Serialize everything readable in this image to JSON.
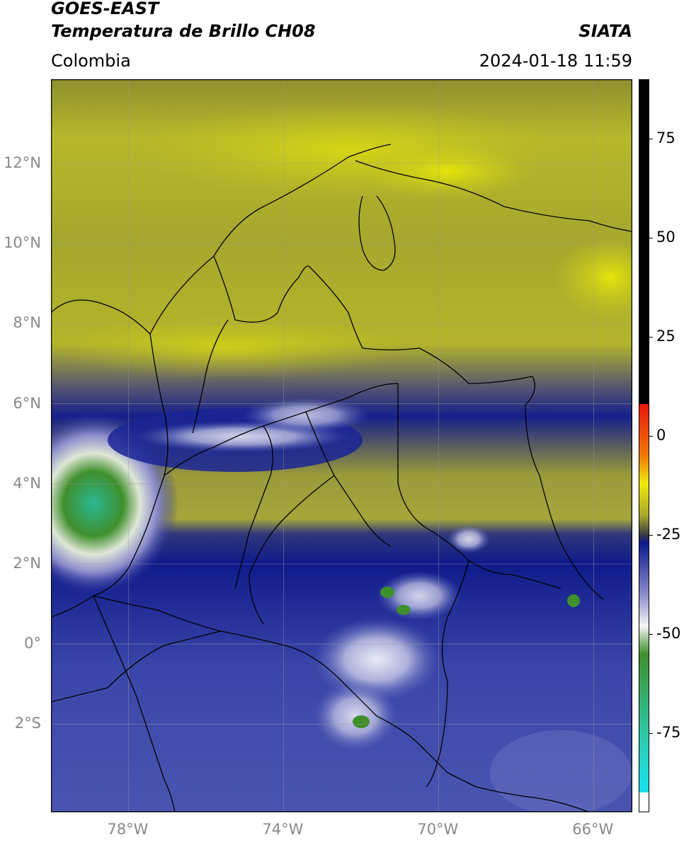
{
  "header": {
    "satellite": "GOES-EAST",
    "product": "Temperatura de Brillo CH08",
    "source": "SIATA",
    "region": "Colombia",
    "datetime": "2024-01-18 11:59"
  },
  "map": {
    "lat_labels": [
      "12°N",
      "10°N",
      "8°N",
      "6°N",
      "4°N",
      "2°N",
      "0°",
      "2°S"
    ],
    "lon_labels": [
      "78°W",
      "74°W",
      "70°W",
      "66°W"
    ],
    "lat_values": [
      12,
      10,
      8,
      6,
      4,
      2,
      0,
      -2
    ],
    "lon_values": [
      -78,
      -74,
      -70,
      -66
    ],
    "lon_range": [
      -80,
      -65
    ],
    "lat_range": [
      -4.2,
      14.1
    ]
  },
  "colorbar": {
    "tick_labels": [
      "75",
      "50",
      "25",
      "0",
      "-25",
      "-50",
      "-75"
    ],
    "tick_values": [
      75,
      50,
      25,
      0,
      -25,
      -50,
      -75
    ],
    "range": [
      -95,
      90
    ],
    "colors": {
      "warm_black": "#000000",
      "red": "#e8160b",
      "orange": "#f07a08",
      "yellow": "#eeea0a",
      "olive": "#a9a928",
      "gray": "#3b3b44",
      "navy": "#0b1a8b",
      "lavender": "#8a8ccc",
      "white": "#f5f5f5",
      "green": "#3f8f2c",
      "teal": "#2bcfb8",
      "cyan": "#19e0e6"
    }
  }
}
